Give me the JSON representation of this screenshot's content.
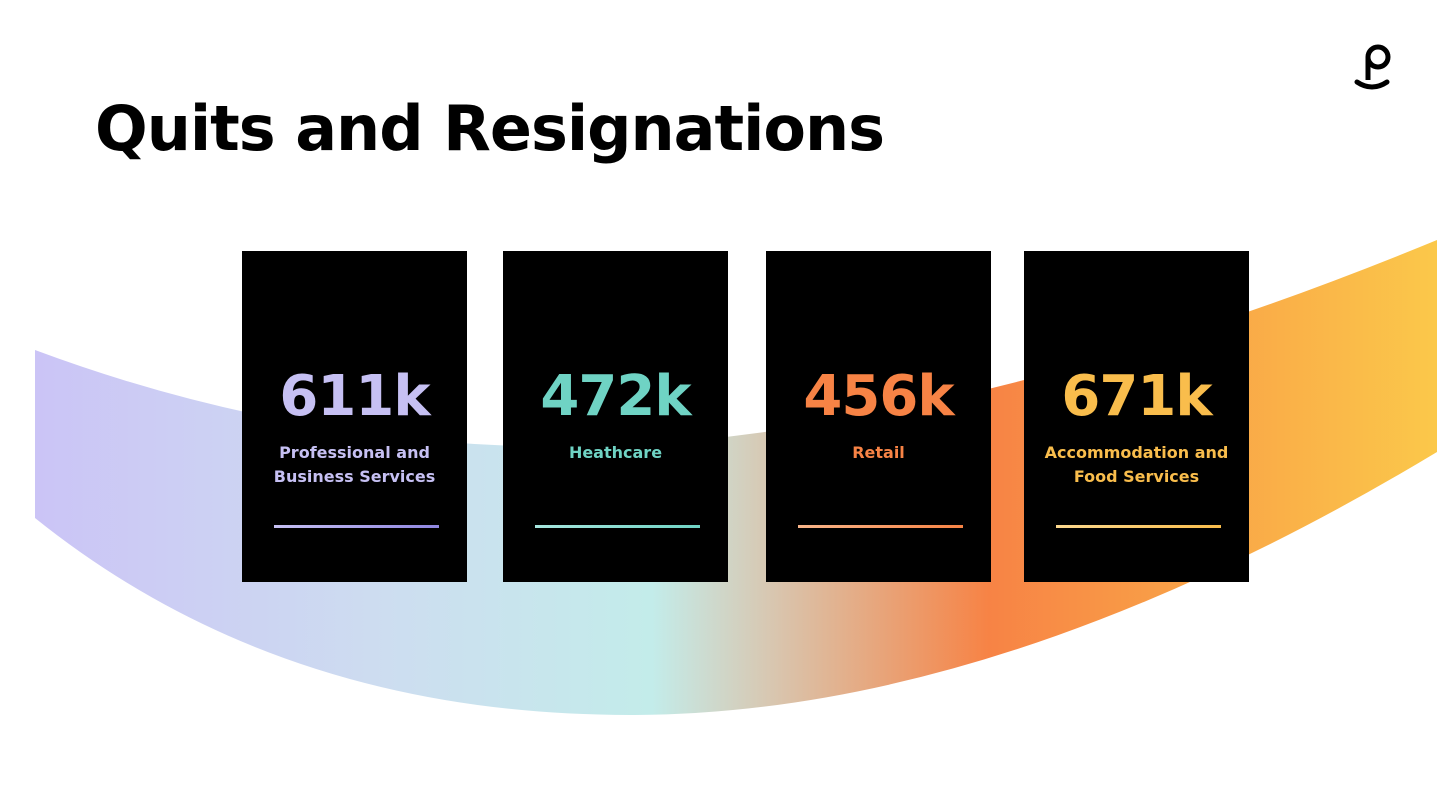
{
  "title": "Quits and Resignations",
  "cards": [
    {
      "value": "611k",
      "label": "Professional and Business Services"
    },
    {
      "value": "472k",
      "label": "Heathcare"
    },
    {
      "value": "456k",
      "label": "Retail"
    },
    {
      "value": "671k",
      "label": "Accommodation and Food Services"
    }
  ]
}
